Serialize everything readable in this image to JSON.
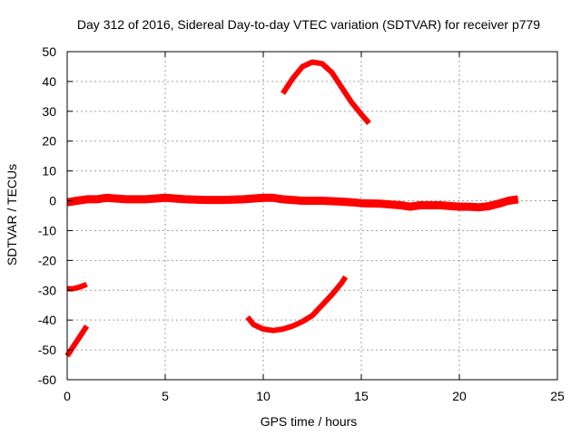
{
  "chart_data": {
    "type": "line",
    "title": "Day 312 of 2016, Sidereal Day-to-day VTEC variation (SDTVAR) for receiver p779",
    "xlabel": "GPS time / hours",
    "ylabel": "SDTVAR / TECUs",
    "xlim": [
      0,
      25
    ],
    "ylim": [
      -60,
      50
    ],
    "xticks": [
      0,
      5,
      10,
      15,
      20,
      25
    ],
    "yticks": [
      50,
      40,
      30,
      20,
      10,
      0,
      -10,
      -20,
      -30,
      -40,
      -50,
      -60
    ],
    "grid": true,
    "series_color": "#ff0000",
    "series": [
      {
        "name": "main band near zero",
        "x": [
          0,
          0.5,
          1,
          1.5,
          2,
          3,
          4,
          5,
          6,
          7,
          8,
          9,
          10,
          10.5,
          11,
          12,
          13,
          14,
          14.5,
          15,
          16,
          17,
          17.5,
          18,
          19,
          20,
          20.5,
          21,
          21.5,
          22,
          22.5,
          23
        ],
        "y": [
          -0.5,
          0,
          0.5,
          0.5,
          1,
          0.5,
          0.5,
          1,
          0.5,
          0.3,
          0.3,
          0.5,
          1,
          1,
          0.5,
          0,
          0,
          -0.3,
          -0.5,
          -0.8,
          -1,
          -1.5,
          -2,
          -1.5,
          -1.5,
          -2,
          -2,
          -2.2,
          -1.8,
          -1,
          0,
          0.5
        ]
      },
      {
        "name": "upper arc",
        "x": [
          11,
          11.5,
          12,
          12.5,
          13,
          13.5,
          14,
          14.5,
          15,
          15.4
        ],
        "y": [
          36,
          41,
          45,
          46.5,
          46,
          43,
          38,
          33,
          29,
          26
        ]
      },
      {
        "name": "lower arc",
        "x": [
          9.2,
          9.5,
          10,
          10.5,
          11,
          11.5,
          12,
          12.5,
          13,
          13.5,
          14,
          14.2
        ],
        "y": [
          -39,
          -41.5,
          -43,
          -43.5,
          -43,
          -42,
          -40.5,
          -38.5,
          -35,
          -31.5,
          -27.5,
          -25.5
        ]
      },
      {
        "name": "short segment near -29",
        "x": [
          0,
          0.3,
          0.6,
          0.9,
          1
        ],
        "y": [
          -29.5,
          -29.5,
          -29,
          -28.3,
          -28
        ]
      },
      {
        "name": "rising segment near -45",
        "x": [
          0,
          0.2,
          0.4,
          0.6,
          0.8,
          1
        ],
        "y": [
          -52,
          -50,
          -48,
          -46,
          -44,
          -42
        ]
      }
    ]
  }
}
